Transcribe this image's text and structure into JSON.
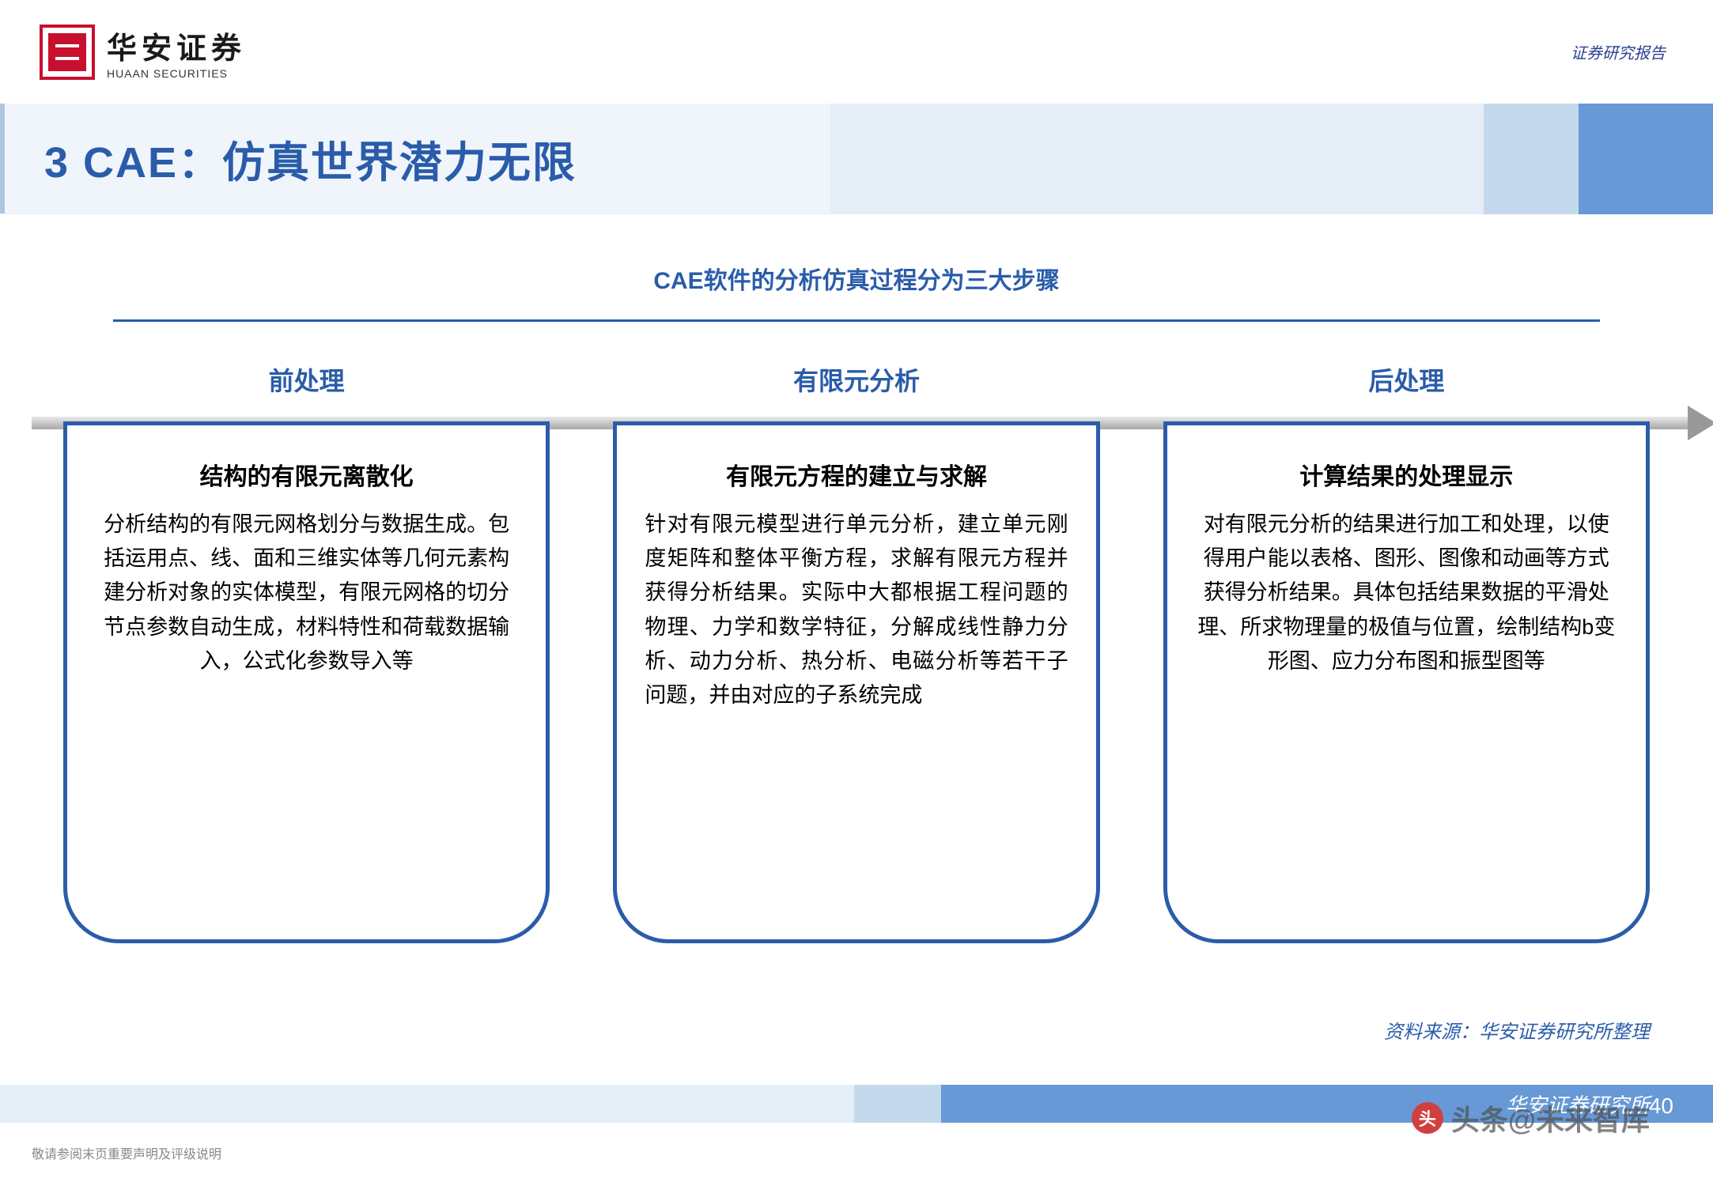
{
  "header": {
    "logo_main": "华安证券",
    "logo_sub": "HUAAN SECURITIES",
    "report_label": "证券研究报告"
  },
  "title": "3 CAE：仿真世界潜力无限",
  "subtitle": "CAE软件的分析仿真过程分为三大步骤",
  "colors": {
    "primary_blue": "#2a5caa",
    "light_blue_bg": "#e5edf7",
    "mid_blue": "#c5d9ed",
    "accent_blue": "#6699d6",
    "logo_red": "#c8102e",
    "text_black": "#000000",
    "arrow_gray": "#a8a8a8"
  },
  "steps": [
    {
      "label": "前处理",
      "box_title": "结构的有限元离散化",
      "box_body": "分析结构的有限元网格划分与数据生成。包括运用点、线、面和三维实体等几何元素构建分析对象的实体模型，有限元网格的切分节点参数自动生成，材料特性和荷载数据输入，公式化参数导入等"
    },
    {
      "label": "有限元分析",
      "box_title": "有限元方程的建立与求解",
      "box_body": "针对有限元模型进行单元分析，建立单元刚度矩阵和整体平衡方程，求解有限元方程并获得分析结果。实际中大都根据工程问题的物理、力学和数学特征，分解成线性静力分析、动力分析、热分析、电磁分析等若干子问题，并由对应的子系统完成"
    },
    {
      "label": "后处理",
      "box_title": "计算结果的处理显示",
      "box_body": "对有限元分析的结果进行加工和处理，以使得用户能以表格、图形、图像和动画等方式获得分析结果。具体包括结果数据的平滑处理、所求物理量的极值与位置，绘制结构b变形图、应力分布图和振型图等"
    }
  ],
  "source": "资料来源：华安证券研究所整理",
  "footer": {
    "institute": "华安证券研究所",
    "note": "敬请参阅末页重要声明及评级说明",
    "page": "40"
  },
  "watermark": "头条@未来智库"
}
